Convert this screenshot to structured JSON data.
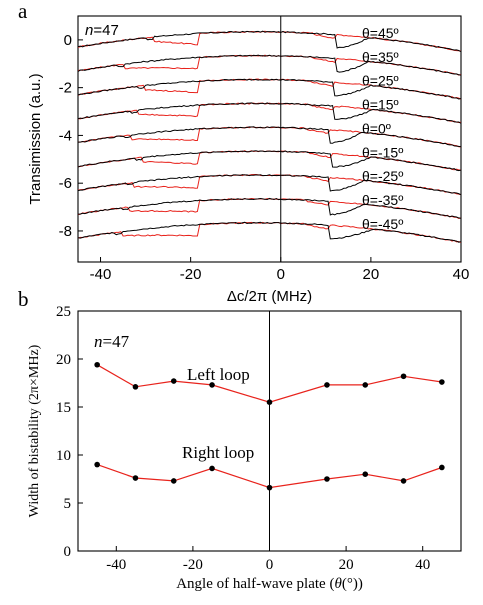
{
  "colors": {
    "up_sweep": "#000000",
    "down_sweep": "#e8231c",
    "axis": "#000000",
    "series": "#e8231c"
  },
  "panel_a": {
    "label": "a",
    "annotation": "n=47",
    "annotation_n": "n",
    "annotation_eq": "=47",
    "xlabel": "Δc/2π (MHz)",
    "ylabel": "Transimission (a.u.)"
  },
  "panel_b": {
    "label": "b",
    "annotation": "n=47",
    "annotation_n": "n",
    "annotation_eq": "=47",
    "left_loop_label": "Left loop",
    "right_loop_label": "Right loop",
    "xlabel_pre": "Angle of half-wave plate (",
    "xlabel_theta": "θ",
    "xlabel_post": "(°))",
    "ylabel": "Width of bistability (2π×MHz)"
  },
  "chart_data": [
    {
      "type": "line",
      "title": "",
      "xlabel": "Δc/2π (MHz)",
      "ylabel": "Transimission (a.u.)",
      "xlim": [
        -45,
        40
      ],
      "ylim": [
        -9.3,
        1.0
      ],
      "xticks": [
        -40,
        -20,
        0,
        20,
        40
      ],
      "yticks": [
        0,
        -2,
        -4,
        -6,
        -8
      ],
      "vline_x": 0,
      "grid": false,
      "legend": "none",
      "traces": [
        {
          "label": "θ=45º",
          "offset": 0.0,
          "left_jump": -18,
          "left_edge": -28.5,
          "right_jump": 12.5,
          "right_edge": 19.5
        },
        {
          "label": "θ=35º",
          "offset": -1.0,
          "left_jump": -18,
          "left_edge": -35.0,
          "right_jump": 12.5,
          "right_edge": 19.5
        },
        {
          "label": "θ=25º",
          "offset": -2.0,
          "left_jump": -18,
          "left_edge": -30.5,
          "right_jump": 12.0,
          "right_edge": 20.0
        },
        {
          "label": "θ=15º",
          "offset": -3.0,
          "left_jump": -18,
          "left_edge": -32.0,
          "right_jump": 12.0,
          "right_edge": 20.5
        },
        {
          "label": "θ=0º",
          "offset": -4.0,
          "left_jump": -18,
          "left_edge": -33.5,
          "right_jump": 11.0,
          "right_edge": 18.0
        },
        {
          "label": "θ=-15º",
          "offset": -5.0,
          "left_jump": -18,
          "left_edge": -31.0,
          "right_jump": 11.5,
          "right_edge": 20.0
        },
        {
          "label": "θ=-25º",
          "offset": -6.0,
          "left_jump": -18,
          "left_edge": -33.0,
          "right_jump": 11.0,
          "right_edge": 18.5
        },
        {
          "label": "θ=-35º",
          "offset": -7.0,
          "left_jump": -18,
          "left_edge": -34.0,
          "right_jump": 11.0,
          "right_edge": 18.5
        },
        {
          "label": "θ=-45º",
          "offset": -8.0,
          "left_jump": -18,
          "left_edge": -35.5,
          "right_jump": 11.0,
          "right_edge": 20.5
        }
      ]
    },
    {
      "type": "line",
      "title": "",
      "xlabel": "Angle of half-wave plate (θ(°))",
      "ylabel": "Width of bistability (2π×MHz)",
      "xlim": [
        -50,
        50
      ],
      "ylim": [
        0,
        25
      ],
      "xticks": [
        -40,
        -20,
        0,
        20,
        40
      ],
      "yticks": [
        0,
        5,
        10,
        15,
        20,
        25
      ],
      "vline_x": 0,
      "grid": false,
      "legend": "none",
      "x": [
        -45,
        -35,
        -25,
        -15,
        0,
        15,
        25,
        35,
        45
      ],
      "series": [
        {
          "name": "Left loop",
          "values": [
            19.4,
            17.1,
            17.7,
            17.3,
            15.5,
            17.3,
            17.3,
            18.2,
            17.6
          ]
        },
        {
          "name": "Right loop",
          "values": [
            9.0,
            7.6,
            7.3,
            8.6,
            6.6,
            7.5,
            8.0,
            7.3,
            8.7
          ]
        }
      ]
    }
  ]
}
